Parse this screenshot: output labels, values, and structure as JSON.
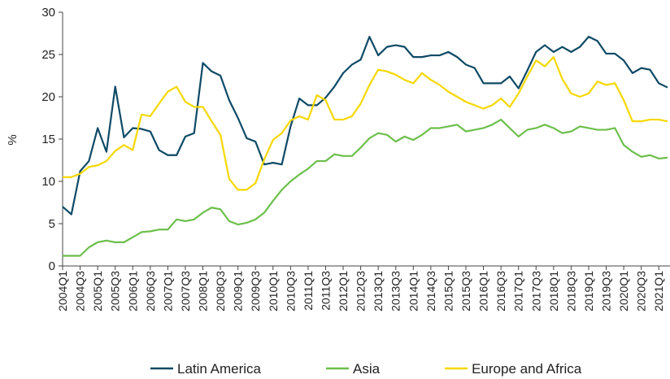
{
  "chart_data": {
    "type": "line",
    "y_label": "%",
    "categories": [
      "2004Q1",
      null,
      "2004Q3",
      null,
      "2005Q1",
      null,
      "2005Q3",
      null,
      "2006Q1",
      null,
      "2006Q3",
      null,
      "2007Q1",
      null,
      "2007Q3",
      null,
      "2008Q1",
      null,
      "2008Q3",
      null,
      "2009Q1",
      null,
      "2009Q3",
      null,
      "2010Q1",
      null,
      "2010Q3",
      null,
      "2011Q1",
      null,
      "2011Q3",
      null,
      "2012Q1",
      null,
      "2012Q3",
      null,
      "2013Q1",
      null,
      "2013Q3",
      null,
      "2014Q1",
      null,
      "2014Q3",
      null,
      "2015Q1",
      null,
      "2015Q3",
      null,
      "2016Q1",
      null,
      "2016Q3",
      null,
      "2017Q1",
      null,
      "2017Q3",
      null,
      "2018Q1",
      null,
      "2018Q3",
      null,
      "2019Q1",
      null,
      "2019Q3",
      null,
      "2020Q1",
      null,
      "2020Q3",
      null,
      "2021Q1",
      null
    ],
    "series": [
      {
        "name": "Latin America",
        "color": "#0e4a66",
        "values": [
          7,
          6.1,
          11.2,
          12.4,
          16.3,
          13.5,
          21.2,
          15.2,
          16.3,
          16.2,
          15.9,
          13.7,
          13.1,
          13.1,
          15.3,
          15.7,
          24,
          23,
          22.5,
          19.6,
          17.5,
          15.1,
          14.7,
          12,
          12.2,
          12,
          16.5,
          19.8,
          19,
          19,
          19.9,
          21.2,
          22.8,
          23.8,
          24.4,
          27.1,
          24.9,
          25.9,
          26.1,
          25.9,
          24.7,
          24.7,
          24.9,
          24.9,
          25.3,
          24.7,
          23.8,
          23.4,
          21.6,
          21.6,
          21.6,
          22.4,
          21,
          23.1,
          25.3,
          26.1,
          25.3,
          25.9,
          25.3,
          25.9,
          27.1,
          26.6,
          25.1,
          25.1,
          24.3,
          22.8,
          23.4,
          23.2,
          21.6,
          21.1
        ]
      },
      {
        "name": "Asia",
        "color": "#6cbf4b",
        "values": [
          1.2,
          1.2,
          1.2,
          2.2,
          2.8,
          3,
          2.8,
          2.8,
          3.4,
          4,
          4.1,
          4.3,
          4.3,
          5.5,
          5.3,
          5.5,
          6.3,
          6.9,
          6.7,
          5.3,
          4.9,
          5.1,
          5.5,
          6.3,
          7.7,
          9,
          10,
          10.8,
          11.5,
          12.4,
          12.4,
          13.2,
          13,
          13,
          14,
          15.1,
          15.7,
          15.5,
          14.7,
          15.3,
          14.9,
          15.5,
          16.3,
          16.3,
          16.5,
          16.7,
          15.9,
          16.1,
          16.3,
          16.7,
          17.3,
          16.3,
          15.3,
          16.1,
          16.3,
          16.7,
          16.3,
          15.7,
          15.9,
          16.5,
          16.3,
          16.1,
          16.1,
          16.3,
          14.3,
          13.5,
          12.9,
          13.1,
          12.7,
          12.8
        ]
      },
      {
        "name": "Europe and Africa",
        "color": "#f5d800",
        "values": [
          10.5,
          10.5,
          10.9,
          11.7,
          11.9,
          12.4,
          13.6,
          14.3,
          13.7,
          17.9,
          17.7,
          19.2,
          20.6,
          21.2,
          19.4,
          18.8,
          18.8,
          17.1,
          15.5,
          10.3,
          9,
          9,
          9.8,
          12.6,
          14.9,
          15.7,
          17.2,
          17.7,
          17.3,
          20.2,
          19.6,
          17.3,
          17.3,
          17.7,
          19.2,
          21.4,
          23.2,
          23,
          22.6,
          22,
          21.6,
          22.8,
          22,
          21.4,
          20.6,
          20,
          19.4,
          19,
          18.6,
          19,
          19.8,
          18.8,
          20.4,
          22.4,
          24.3,
          23.6,
          24.7,
          22.1,
          20.4,
          20,
          20.4,
          21.8,
          21.4,
          21.6,
          19.6,
          17.1,
          17.1,
          17.3,
          17.3,
          17.1
        ]
      }
    ],
    "ylim": [
      0,
      30
    ],
    "yticks": [
      0,
      5,
      10,
      15,
      20,
      25,
      30
    ],
    "legend": "bottom"
  }
}
